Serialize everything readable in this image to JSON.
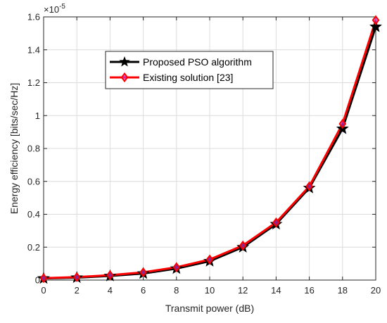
{
  "chart_data": {
    "type": "line",
    "title": "",
    "xlabel": "Transmit power (dB)",
    "ylabel": "Energy efficiency [bits/sec/Hz]",
    "y_exponent_label": "×10",
    "y_exponent_power": "-5",
    "x": [
      0,
      2,
      4,
      6,
      8,
      10,
      12,
      14,
      16,
      18,
      20
    ],
    "xlim": [
      0,
      20
    ],
    "ylim": [
      0,
      1.6
    ],
    "xticks": [
      0,
      2,
      4,
      6,
      8,
      10,
      12,
      14,
      16,
      18,
      20
    ],
    "yticks": [
      0,
      0.2,
      0.4,
      0.6,
      0.8,
      1.0,
      1.2,
      1.4,
      1.6
    ],
    "xtick_labels": [
      "0",
      "2",
      "4",
      "6",
      "8",
      "10",
      "12",
      "14",
      "16",
      "18",
      "20"
    ],
    "ytick_labels": [
      "0",
      "0.2",
      "0.4",
      "0.6",
      "0.8",
      "1",
      "1.2",
      "1.4",
      "1.6"
    ],
    "grid": true,
    "legend_position": "top-left",
    "series": [
      {
        "name": "Proposed PSO algorithm",
        "color": "#000000",
        "marker": "star",
        "values": [
          0.01,
          0.015,
          0.025,
          0.04,
          0.07,
          0.115,
          0.2,
          0.34,
          0.56,
          0.92,
          1.54
        ]
      },
      {
        "name": "Existing solution [23]",
        "color": "#ff0000",
        "marker": "diamond",
        "values": [
          0.012,
          0.018,
          0.03,
          0.047,
          0.078,
          0.125,
          0.21,
          0.35,
          0.57,
          0.95,
          1.58
        ]
      }
    ]
  }
}
